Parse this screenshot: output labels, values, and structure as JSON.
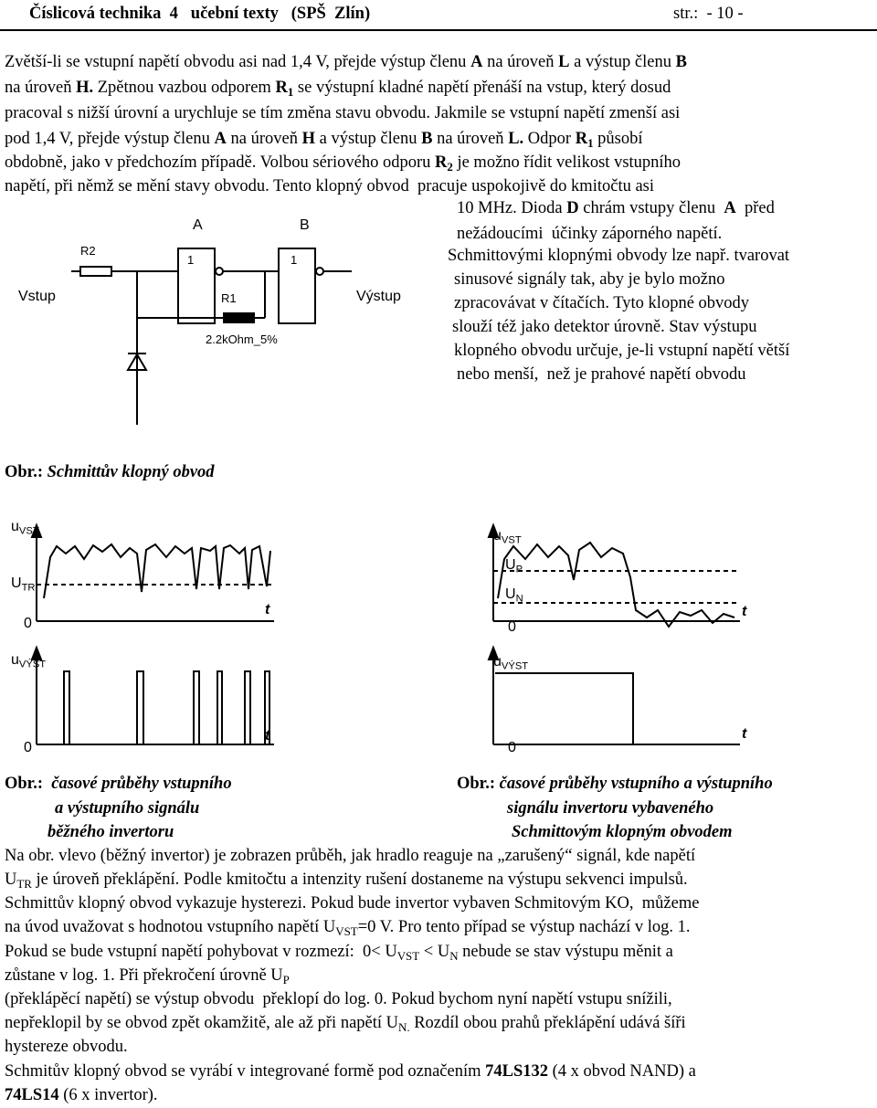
{
  "header": {
    "title": "Číslicová technika  4   učební texty   (SPŠ  Zlín)",
    "page": "str.:  - 10 -"
  },
  "paragraph_1": [
    [
      "Zvětší-li se vstupní napětí obvodu asi nad 1,4 V, přejde výstup členu ",
      "A",
      " na úroveň ",
      "L",
      " a výstup členu ",
      "B"
    ],
    [
      "na úroveň ",
      "H.",
      " Zpětnou vazbou odporem ",
      "R",
      "1",
      " se výstupní kladné napětí přenáší na vstup, který dosud"
    ],
    [
      "pracoval s nižší úrovní a urychluje se tím změna stavu obvodu. Jakmile se vstupní napětí zmenší asi"
    ],
    [
      "pod 1,4 V, přejde výstup členu ",
      "A",
      " na úroveň ",
      "H",
      " a výstup členu ",
      "B",
      " na úroveň ",
      "L.",
      " Odpor ",
      "R",
      "1",
      " působí"
    ],
    [
      "obdobně, jako v předchozím případě. Volbou sériového odporu ",
      "R",
      "2",
      " je možno řídit velikost vstupního"
    ],
    [
      "napětí, při němž se mění stavy obvodu. Tento klopný obvod  pracuje uspokojivě do kmitočtu asi"
    ]
  ],
  "right_column": [
    [
      "10 MHz. Dioda ",
      "D",
      " chrám vstupy členu  ",
      "A",
      "  před"
    ],
    [
      "nežádoucími  účinky záporného napětí."
    ],
    [
      "Schmittovými klopnými obvody lze např. tvarovat"
    ],
    [
      "sinusové signály tak, aby je bylo možno"
    ],
    [
      "zpracovávat v čítačích. Tyto klopné obvody"
    ],
    [
      "slouží též jako detektor úrovně. Stav výstupu"
    ],
    [
      "klopného obvodu určuje, je-li vstupní napětí větší"
    ],
    [
      "nebo menší,  než je prahové napětí obvodu"
    ]
  ],
  "circuit": {
    "gate_a": "A",
    "gate_b": "B",
    "r2": "R2",
    "gate_a_symbol": "1",
    "gate_b_symbol": "1",
    "input": "Vstup",
    "r1": "R1",
    "output": "Výstup",
    "r1_value": "2.2kOhm_5%"
  },
  "figure_caption": [
    "Obr.:",
    " Schmittův klopný obvod"
  ],
  "waveforms_left": {
    "u_in": [
      "u",
      "VST"
    ],
    "threshold": [
      "U",
      "TR"
    ],
    "zero_in": "0",
    "t_in": "t",
    "u_out": [
      "u",
      "VÝST"
    ],
    "zero_out": "0",
    "t_out": "t"
  },
  "waveforms_right": {
    "u_in": [
      "u",
      "VST"
    ],
    "upper": [
      "U",
      "P"
    ],
    "lower": [
      "U",
      "N"
    ],
    "zero_in": "0",
    "t_in": "t",
    "u_out": [
      "u",
      "VÝST"
    ],
    "zero_out": "0",
    "t_out": "t"
  },
  "caption_left": [
    [
      "Obr.:",
      "  časové průběhy vstupního"
    ],
    [
      "a výstupního signálu"
    ],
    [
      "běžného invertoru"
    ]
  ],
  "caption_right": [
    [
      "Obr.:",
      " časové průběhy vstupního a výstupního"
    ],
    [
      "signálu invertoru vybaveného"
    ],
    [
      "Schmittovým klopným obvodem"
    ]
  ],
  "paragraph_2": [
    [
      "Na obr. vlevo (běžný invertor) je zobrazen průběh, jak hradlo reaguje na „zarušený“ signál, kde napětí"
    ],
    [
      "U",
      "TR",
      " je úroveň překlápění. Podle kmitočtu a intenzity rušení dostaneme na výstupu sekvenci impulsů."
    ],
    [
      "Schmittův klopný obvod vykazuje hysterezi. Pokud bude invertor vybaven Schmitovým KO,  můžeme"
    ],
    [
      "na úvod uvažovat s hodnotou vstupního napětí U",
      "VST",
      "=0 V. Pro tento případ se výstup nachází v log. 1."
    ],
    [
      "Pokud se bude vstupní napětí pohybovat v rozmezí:  0< U",
      "VST",
      " < U",
      "N",
      " nebude se stav výstupu měnit a"
    ],
    [
      "zůstane v log. 1. Při překročení úrovně U",
      "P"
    ],
    [
      "(překlápěcí napětí) se výstup obvodu  překlopí do log. 0. Pokud bychom nyní napětí vstupu snížili,"
    ],
    [
      "nepřeklopil by se obvod zpět okamžitě, ale až při napětí U",
      "N.",
      " Rozdíl obou prahů překlápění udává šíři"
    ],
    [
      "hystereze obvodu."
    ],
    [
      "Schmitův klopný obvod se vyrábí v integrované formě pod označením ",
      "74LS132",
      " (4 x obvod NAND) a"
    ],
    [
      "74LS14",
      " (6 x invertor)."
    ]
  ]
}
